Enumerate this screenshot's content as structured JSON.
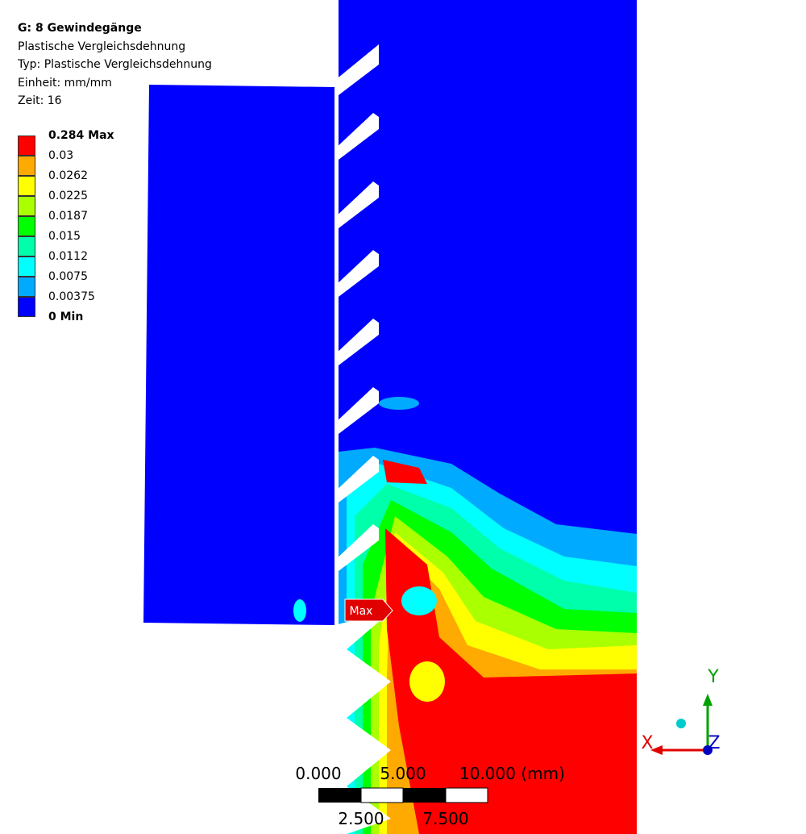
{
  "header": {
    "title": "G: 8 Gewindegänge",
    "lines": [
      "Plastische Vergleichsdehnung",
      "Typ: Plastische Vergleichsdehnung",
      "Einheit: mm/mm",
      "Zeit: 16"
    ]
  },
  "legend": {
    "labels": [
      "0.284 Max",
      "0.03",
      "0.0262",
      "0.0225",
      "0.0187",
      "0.015",
      "0.0112",
      "0.0075",
      "0.00375",
      "0 Min"
    ],
    "colors": [
      "#ff0000",
      "#ffaa00",
      "#ffff00",
      "#aaff00",
      "#00ff00",
      "#00ffaa",
      "#00ffff",
      "#00aaff",
      "#0000ff"
    ]
  },
  "probe": {
    "label": "Max"
  },
  "scale_bar": {
    "top_labels": [
      "0.000",
      "5.000",
      "10.000 (mm)"
    ],
    "bottom_labels": [
      "2.500",
      "7.500"
    ]
  },
  "triad": {
    "x": "X",
    "y": "Y",
    "z": "Z"
  }
}
